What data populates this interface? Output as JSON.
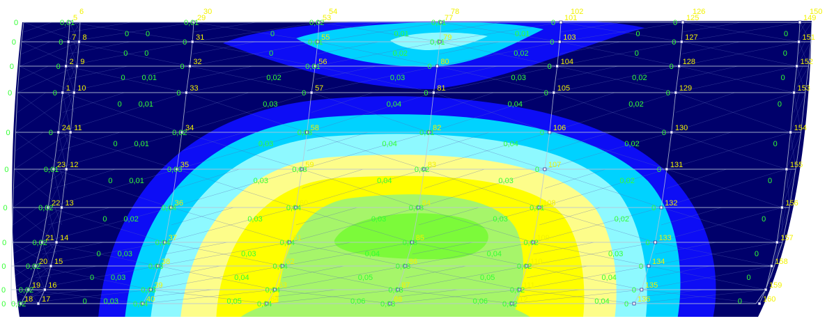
{
  "colors": {
    "c0": "#00006b",
    "c1": "#0d0df5",
    "c2": "#00d2ff",
    "c3": "#8ef9ff",
    "c4": "#fdfd8a",
    "c5": "#ffff00",
    "c6": "#a6f56a",
    "c7": "#7cfa3a",
    "node_label": "#f2f200",
    "value_label": "#33ff33",
    "mesh": "#b9c4d6"
  },
  "columns": [
    [
      "5",
      "7",
      "2",
      "1",
      "24",
      "23",
      "22",
      "21",
      "20",
      "19",
      "18"
    ],
    [
      "29",
      "31",
      "32",
      "33",
      "34",
      "35",
      "36",
      "37",
      "38",
      "39",
      "40"
    ],
    [
      "53",
      "55",
      "56",
      "57",
      "58",
      "59",
      "60",
      "61",
      "62",
      "63",
      "64"
    ],
    [
      "77",
      "79",
      "80",
      "81",
      "82",
      "83",
      "84",
      "85",
      "86",
      "87",
      "88"
    ],
    [
      "101",
      "103",
      "104",
      "105",
      "106",
      "107",
      "108",
      "109",
      "110",
      "111",
      "112"
    ],
    [
      "125",
      "127",
      "128",
      "129",
      "130",
      "131",
      "132",
      "133",
      "134",
      "135",
      "136"
    ],
    [
      "149",
      "151",
      "152",
      "153",
      "154",
      "155",
      "156",
      "157",
      "158",
      "159",
      "160"
    ]
  ],
  "inner_nodes": [
    "8",
    "9",
    "10",
    "11",
    "12",
    "13",
    "14",
    "15",
    "16",
    "17"
  ],
  "extra_node_labels": [
    "6",
    "30",
    "54",
    "78",
    "102",
    "126",
    "150"
  ],
  "values": [
    [
      "0",
      "0",
      "0",
      "0",
      "0",
      "0",
      "0",
      "0",
      "0",
      "0",
      "0"
    ],
    [
      "0",
      "0",
      "0,01",
      "0,01",
      "0,01",
      "0,01",
      "0,02",
      "0,03",
      "0,03",
      "0,03",
      "0,02"
    ],
    [
      "0",
      "0",
      "0,02",
      "0,03",
      "0,03",
      "0,03",
      "0,03",
      "0,03",
      "0,04",
      "0,05",
      "0,05"
    ],
    [
      "0,01",
      "0,02",
      "0,03",
      "0,04",
      "0,04",
      "0,04",
      "0,03",
      "0,04",
      "0,05",
      "0,06",
      "0,06"
    ],
    [
      "0,01",
      "0,02",
      "0,03",
      "0,04",
      "0,04",
      "0,03",
      "0,03",
      "0,04",
      "0,05",
      "0,06",
      "0,05"
    ],
    [
      "0",
      "0",
      "0,02",
      "0,02",
      "0,02",
      "0,02",
      "0,02",
      "0,03",
      "0,04",
      "0,04",
      "0,03"
    ],
    [
      "0",
      "0",
      "0",
      "0",
      "0",
      "0",
      "0",
      "0",
      "0",
      "0",
      "0"
    ]
  ],
  "edge_values": [
    [
      "0",
      "0",
      "0",
      "0",
      "0",
      "0",
      "0",
      "0",
      "0",
      "0",
      "0"
    ],
    [
      "0,01",
      "0",
      "0",
      "0",
      "0",
      "0,01",
      "0,02",
      "0,02",
      "0,02",
      "0,02",
      "0,02"
    ],
    [
      "0,01",
      "0",
      "0",
      "0",
      "0,02",
      "0,03",
      "0,04",
      "0,04",
      "0,03",
      "0,03",
      "0,04"
    ],
    [
      "0,02",
      "0,01",
      "0,01",
      "0",
      "0,03",
      "0,03",
      "0,04",
      "0,04",
      "0,04",
      "0,04",
      "0,04"
    ],
    [
      "0,01",
      "0,01",
      "0",
      "0",
      "0,01",
      "0,02",
      "0,03",
      "0,03",
      "0,03",
      "0,03",
      "0,03"
    ],
    [
      "0",
      "0",
      "0",
      "0",
      "0",
      "0",
      "0,01",
      "0,02",
      "0,02",
      "0,02",
      "0,02"
    ],
    [
      "0",
      "0",
      "0",
      "0",
      "0",
      "0",
      "0",
      "0",
      "0",
      "0",
      "0"
    ]
  ]
}
